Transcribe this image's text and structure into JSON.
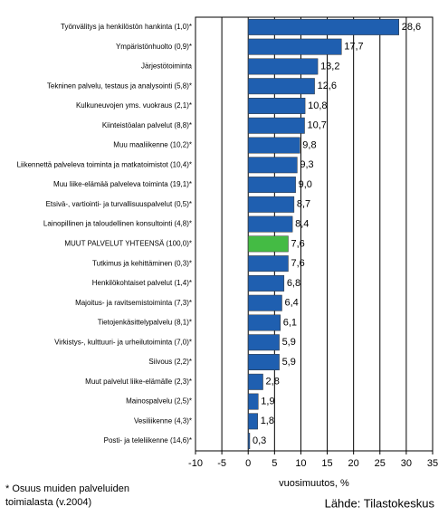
{
  "chart_data": {
    "type": "barh",
    "categories": [
      "Työnvälitys ja henkilöstön hankinta (1,0)*",
      "Ympäristönhuolto (0,9)*",
      "Järjestötoiminta",
      "Tekninen palvelu, testaus ja analysointi (5,8)*",
      "Kulkuneuvojen yms. vuokraus (2,1)*",
      "Kiinteistöalan palvelut (8,8)*",
      "Muu maaliikenne (10,2)*",
      "Liikennettä palveleva toiminta ja matkatoimistot (10,4)*",
      "Muu liike-elämää palveleva toiminta (19,1)*",
      "Etsivä-, vartiointi- ja turvallisuuspalvelut (0,5)*",
      "Lainopillinen ja taloudellinen konsultointi (4,8)*",
      "MUUT PALVELUT YHTEENSÄ (100,0)*",
      "Tutkimus ja kehittäminen (0,3)*",
      "Henkilökohtaiset palvelut (1,4)*",
      "Majoitus- ja ravitsemistoiminta (7,3)*",
      "Tietojenkäsittelypalvelu (8,1)*",
      "Virkistys-, kulttuuri- ja urheilutoiminta (7,0)*",
      "Siivous (2,2)*",
      "Muut palvelut liike-elämälle (2,3)*",
      "Mainospalvelu (2,5)*",
      "Vesiliikenne (4,3)*",
      "Posti- ja teleliikenne (14,6)*"
    ],
    "values": [
      28.6,
      17.7,
      13.2,
      12.6,
      10.8,
      10.7,
      9.8,
      9.3,
      9.0,
      8.7,
      8.4,
      7.6,
      7.6,
      6.8,
      6.4,
      6.1,
      5.9,
      5.9,
      2.8,
      1.9,
      1.8,
      0.3
    ],
    "value_labels": [
      "28,6",
      "17,7",
      "13,2",
      "12,6",
      "10,8",
      "10,7",
      "9,8",
      "9,3",
      "9,0",
      "8,7",
      "8,4",
      "7,6",
      "7,6",
      "6,8",
      "6,4",
      "6,1",
      "5,9",
      "5,9",
      "2,8",
      "1,9",
      "1,8",
      "0,3"
    ],
    "colors": [
      "#1f5fb0",
      "#1f5fb0",
      "#1f5fb0",
      "#1f5fb0",
      "#1f5fb0",
      "#1f5fb0",
      "#1f5fb0",
      "#1f5fb0",
      "#1f5fb0",
      "#1f5fb0",
      "#1f5fb0",
      "#44bb44",
      "#1f5fb0",
      "#1f5fb0",
      "#1f5fb0",
      "#1f5fb0",
      "#1f5fb0",
      "#1f5fb0",
      "#1f5fb0",
      "#1f5fb0",
      "#1f5fb0",
      "#1f5fb0"
    ],
    "xlim": [
      -10,
      35
    ],
    "xticks": [
      -10,
      -5,
      0,
      5,
      10,
      15,
      20,
      25,
      30,
      35
    ],
    "grid": true,
    "xlabel": "vuosimuutos, %",
    "footnote": [
      "* Osuus muiden palveluiden",
      "toimialasta (v.2004)"
    ],
    "source": "Lähde: Tilastokeskus"
  }
}
